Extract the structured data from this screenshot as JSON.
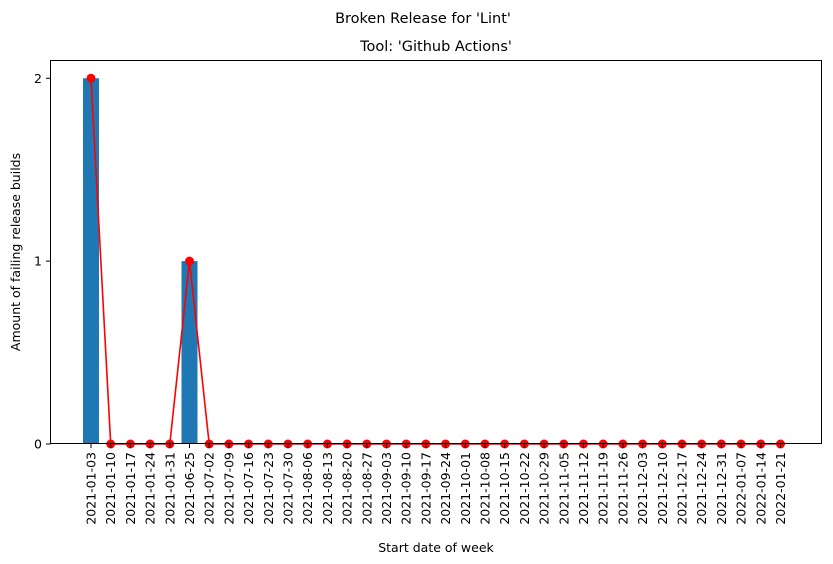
{
  "chart_data": {
    "type": "bar",
    "title": "Broken Release for 'Lint'",
    "subtitle": "Tool: 'Github Actions'",
    "xlabel": "Start date of week",
    "ylabel": "Amount of failing release builds",
    "ylim": [
      0,
      2.1
    ],
    "yticks": [
      0,
      1,
      2
    ],
    "grid": false,
    "categories": [
      "2021-01-03",
      "2021-01-10",
      "2021-01-17",
      "2021-01-24",
      "2021-01-31",
      "2021-06-25",
      "2021-07-02",
      "2021-07-09",
      "2021-07-16",
      "2021-07-23",
      "2021-07-30",
      "2021-08-06",
      "2021-08-13",
      "2021-08-20",
      "2021-08-27",
      "2021-09-03",
      "2021-09-10",
      "2021-09-17",
      "2021-09-24",
      "2021-10-01",
      "2021-10-08",
      "2021-10-15",
      "2021-10-22",
      "2021-10-29",
      "2021-11-05",
      "2021-11-12",
      "2021-11-19",
      "2021-11-26",
      "2021-12-03",
      "2021-12-10",
      "2021-12-17",
      "2021-12-24",
      "2021-12-31",
      "2022-01-07",
      "2022-01-14",
      "2022-01-21"
    ],
    "series": [
      {
        "type": "bar",
        "color": "#1f77b4",
        "values": [
          2,
          0,
          0,
          0,
          0,
          1,
          0,
          0,
          0,
          0,
          0,
          0,
          0,
          0,
          0,
          0,
          0,
          0,
          0,
          0,
          0,
          0,
          0,
          0,
          0,
          0,
          0,
          0,
          0,
          0,
          0,
          0,
          0,
          0,
          0,
          0
        ]
      },
      {
        "type": "line",
        "color": "#ff0000",
        "marker": "circle",
        "values": [
          2,
          0,
          0,
          0,
          0,
          1,
          0,
          0,
          0,
          0,
          0,
          0,
          0,
          0,
          0,
          0,
          0,
          0,
          0,
          0,
          0,
          0,
          0,
          0,
          0,
          0,
          0,
          0,
          0,
          0,
          0,
          0,
          0,
          0,
          0,
          0
        ]
      }
    ]
  }
}
